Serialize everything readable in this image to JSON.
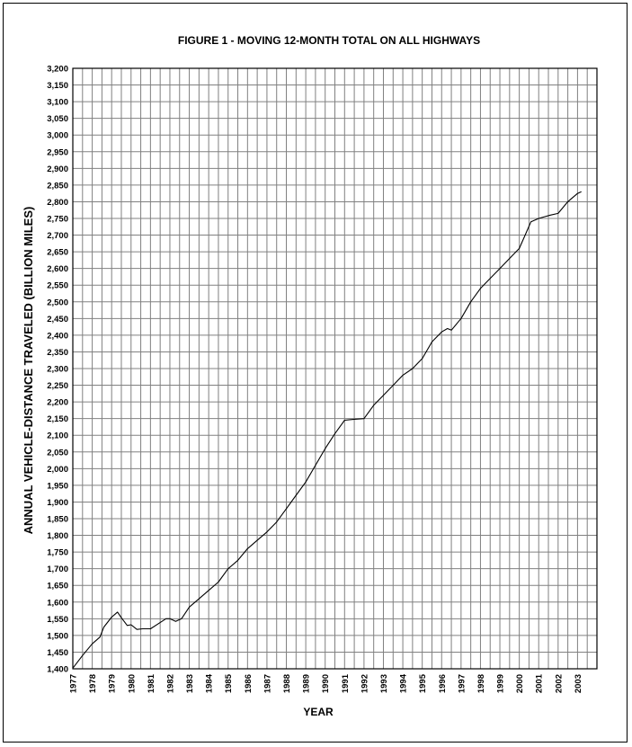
{
  "chart_data": {
    "type": "line",
    "title": "FIGURE 1 - MOVING 12-MONTH TOTAL ON ALL HIGHWAYS",
    "xlabel": "YEAR",
    "ylabel": "ANNUAL VEHICLE-DISTANCE TRAVELED (BILLION MILES)",
    "xlim": [
      1977,
      2004
    ],
    "ylim": [
      1400,
      3200
    ],
    "y_tick_step": 50,
    "x_ticks": [
      "1977",
      "1978",
      "1979",
      "1980",
      "1981",
      "1982",
      "1983",
      "1984",
      "1985",
      "1986",
      "1987",
      "1988",
      "1989",
      "1990",
      "1991",
      "1992",
      "1993",
      "1994",
      "1995",
      "1996",
      "1997",
      "1998",
      "1999",
      "2000",
      "2001",
      "2002",
      "2003"
    ],
    "y_ticks": [
      "1,400",
      "1,450",
      "1,500",
      "1,550",
      "1,600",
      "1,650",
      "1,700",
      "1,750",
      "1,800",
      "1,850",
      "1,900",
      "1,950",
      "2,000",
      "2,050",
      "2,100",
      "2,150",
      "2,200",
      "2,250",
      "2,300",
      "2,350",
      "2,400",
      "2,450",
      "2,500",
      "2,550",
      "2,600",
      "2,650",
      "2,700",
      "2,750",
      "2,800",
      "2,850",
      "2,900",
      "2,950",
      "3,000",
      "3,050",
      "3,100",
      "3,150",
      "3,200"
    ],
    "grid": true,
    "legend": "none",
    "line_color": "#000000",
    "series": [
      {
        "x": [
          1977.0,
          1977.5,
          1978.0,
          1978.4,
          1978.6,
          1979.0,
          1979.3,
          1979.5,
          1979.8,
          1980.0,
          1980.3,
          1980.6,
          1981.0,
          1981.4,
          1981.8,
          1982.0,
          1982.3,
          1982.6,
          1983.0,
          1983.5,
          1984.0,
          1984.5,
          1985.0,
          1985.5,
          1986.0,
          1986.5,
          1987.0,
          1987.5,
          1988.0,
          1988.5,
          1989.0,
          1989.5,
          1990.0,
          1990.5,
          1991.0,
          1991.5,
          1992.0,
          1992.5,
          1993.0,
          1993.5,
          1994.0,
          1994.5,
          1995.0,
          1995.5,
          1996.0,
          1996.3,
          1996.5,
          1997.0,
          1997.5,
          1998.0,
          1998.5,
          1999.0,
          1999.5,
          2000.0,
          2000.3,
          2000.6,
          2001.0,
          2001.3,
          2001.6,
          2002.0,
          2002.5,
          2003.0,
          2003.2
        ],
        "values": [
          1402,
          1440,
          1475,
          1495,
          1525,
          1555,
          1570,
          1553,
          1530,
          1532,
          1518,
          1520,
          1520,
          1535,
          1550,
          1550,
          1542,
          1550,
          1585,
          1610,
          1635,
          1660,
          1700,
          1725,
          1760,
          1785,
          1810,
          1840,
          1880,
          1920,
          1960,
          2010,
          2060,
          2105,
          2145,
          2148,
          2150,
          2190,
          2220,
          2250,
          2280,
          2300,
          2330,
          2380,
          2410,
          2420,
          2415,
          2450,
          2500,
          2540,
          2570,
          2600,
          2630,
          2660,
          2700,
          2740,
          2750,
          2755,
          2760,
          2765,
          2800,
          2825,
          2830
        ]
      }
    ]
  }
}
